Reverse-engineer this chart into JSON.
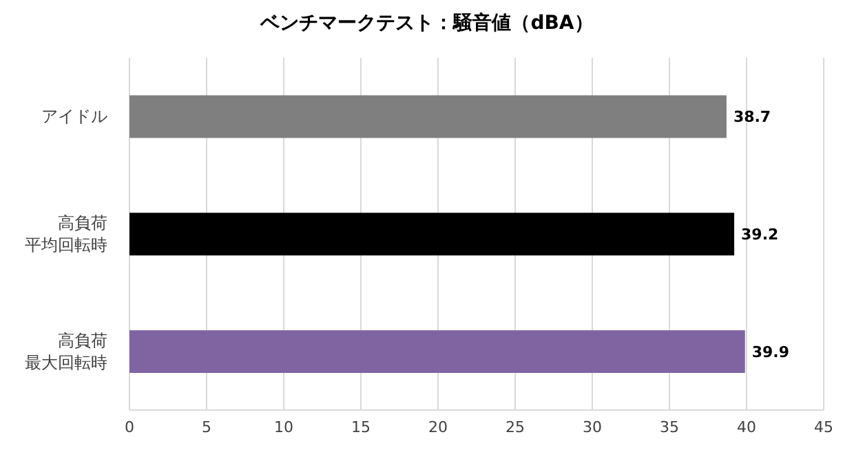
{
  "chart_data": {
    "type": "bar",
    "orientation": "horizontal",
    "title": "ベンチマークテスト：騒音値（dBA）",
    "categories": [
      "アイドル",
      "高負荷平均回転時",
      "高負荷最大回転時"
    ],
    "values": [
      38.7,
      39.2,
      39.9
    ],
    "colors": [
      "#7f7f7f",
      "#000000",
      "#8064a2"
    ],
    "xlim": [
      0,
      45
    ],
    "xticks": [
      0,
      5,
      10,
      15,
      20,
      25,
      30,
      35,
      40,
      45
    ],
    "grid": "x",
    "data_labels": true
  }
}
